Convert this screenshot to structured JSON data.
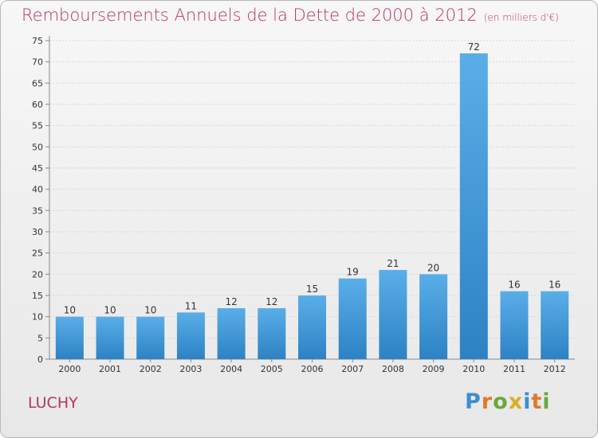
{
  "header": {
    "title": "Remboursements Annuels de la Dette de 2000 à 2012",
    "subtitle": "(en milliers d'€)"
  },
  "footer": {
    "commune": "LUCHY",
    "logo": "Proxiti"
  },
  "colors": {
    "title": "#b8336a",
    "bar_light": "#5aaee8",
    "bar_dark": "#2d82c4"
  },
  "chart_data": {
    "type": "bar",
    "title": "Remboursements Annuels de la Dette de 2000 à 2012",
    "subtitle": "(en milliers d'€)",
    "categories": [
      "2000",
      "2001",
      "2002",
      "2003",
      "2004",
      "2005",
      "2006",
      "2007",
      "2008",
      "2009",
      "2010",
      "2011",
      "2012"
    ],
    "values": [
      10,
      10,
      10,
      11,
      12,
      12,
      15,
      19,
      21,
      20,
      72,
      16,
      16
    ],
    "ylim": [
      0,
      75
    ],
    "yticks": [
      0,
      5,
      10,
      15,
      20,
      25,
      30,
      35,
      40,
      45,
      50,
      55,
      60,
      65,
      70,
      75
    ],
    "grid": true,
    "xlabel": "",
    "ylabel": ""
  }
}
